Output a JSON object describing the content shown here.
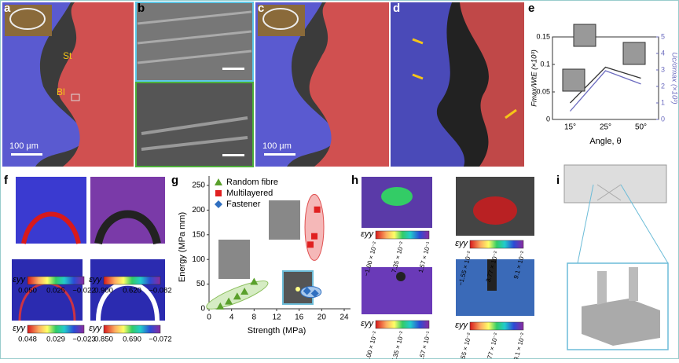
{
  "panel_labels": [
    "a",
    "b",
    "c",
    "d",
    "e",
    "f",
    "g",
    "h",
    "i"
  ],
  "a": {
    "labels": [
      "St",
      "Bl"
    ],
    "scale_bar": "100 µm"
  },
  "c": {
    "scale_bar": "100 µm"
  },
  "f": {
    "colorbars": [
      {
        "symbol": "εyy",
        "ticks": [
          "0.050",
          "0.025",
          "−0.022"
        ]
      },
      {
        "symbol": "εyy",
        "ticks": [
          "0.900",
          "0.620",
          "−0.082"
        ]
      },
      {
        "symbol": "εyy",
        "ticks": [
          "0.048",
          "0.029",
          "−0.023"
        ]
      },
      {
        "symbol": "εyy",
        "ticks": [
          "0.850",
          "0.690",
          "−0.072"
        ]
      }
    ]
  },
  "h": {
    "colorbars": [
      {
        "symbol": "εyy",
        "ticks": [
          "−1.00 × 10⁻²",
          "7.35 × 10⁻²",
          "1.57 × 10⁻¹"
        ]
      },
      {
        "symbol": "εyy",
        "ticks": [
          "−1.55 × 10⁻²",
          "3.77 × 10⁻²",
          "9.1 × 10⁻²"
        ]
      },
      {
        "symbol": "εyy",
        "ticks": [
          "−1.00 × 10⁻²",
          "7.35 × 10⁻²",
          "1.57 × 10⁻¹"
        ]
      },
      {
        "symbol": "εyy",
        "ticks": [
          "−1.55 × 10⁻²",
          "3.77 × 10⁻²",
          "9.1 × 10⁻²"
        ]
      }
    ]
  },
  "chart_data": [
    {
      "type": "line",
      "x_label": "Angle, θ",
      "y_label": "Fmax/WtE (×10³)",
      "y2_label": "Uc/σmax (×10³)",
      "categories": [
        "15°",
        "25°",
        "50°"
      ],
      "ylim": [
        0,
        0.15
      ],
      "yticks": [
        0,
        0.05,
        0.1,
        0.15
      ],
      "y2lim": [
        0,
        5
      ],
      "y2ticks": [
        0,
        1,
        2,
        3,
        4,
        5
      ],
      "series": [
        {
          "color": "#333333",
          "values": [
            0.03,
            0.095,
            0.075
          ]
        },
        {
          "color": "#6b6bbf",
          "axis": "y2",
          "values": [
            0.5,
            2.95,
            2.15
          ]
        }
      ]
    },
    {
      "type": "scatter",
      "x_label": "Strength (MPa)",
      "y_label": "Energy (MPa mm)",
      "xlim": [
        0,
        24
      ],
      "xticks": [
        0,
        4,
        8,
        12,
        16,
        20,
        24
      ],
      "ylim": [
        0,
        250
      ],
      "yticks": [
        0,
        50,
        100,
        150,
        200,
        250
      ],
      "series": [
        {
          "name": "Random fibre",
          "color": "#5aa02c",
          "marker": "triangle",
          "x": [
            2,
            3.5,
            5,
            6.3,
            8
          ],
          "values": [
            5,
            15,
            25,
            35,
            55
          ]
        },
        {
          "name": "Multilayered",
          "color": "#e02020",
          "marker": "square",
          "x": [
            18,
            18.7,
            19.2
          ],
          "values": [
            130,
            147,
            201
          ]
        },
        {
          "name": "Fastener",
          "color": "#2f6fc0",
          "marker": "diamond",
          "x": [
            17.4,
            18.8
          ],
          "values": [
            36,
            31
          ]
        }
      ]
    }
  ]
}
